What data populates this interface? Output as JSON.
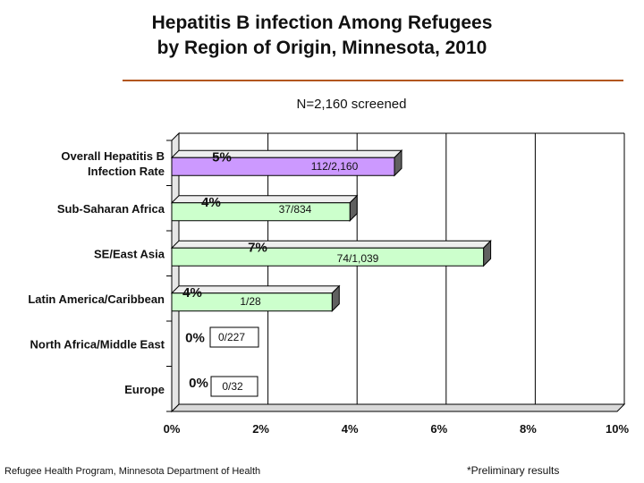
{
  "chart_data": {
    "type": "bar",
    "orientation": "horizontal",
    "title_line1": "Hepatitis B infection Among Refugees",
    "title_line2": "by Region of Origin, Minnesota, 2010",
    "subtitle": "N=2,160 screened",
    "categories": [
      {
        "label_lines": [
          "Overall Hepatitis B",
          "Infection Rate"
        ],
        "value": 5,
        "pct_label": "5%",
        "count_label": "112/2,160",
        "color": "#cc99ff"
      },
      {
        "label_lines": [
          "Sub-Saharan Africa"
        ],
        "value": 4,
        "pct_label": "4%",
        "count_label": "37/834",
        "color": "#ccffcc"
      },
      {
        "label_lines": [
          "SE/East Asia"
        ],
        "value": 7,
        "pct_label": "7%",
        "count_label": "74/1,039",
        "color": "#ccffcc"
      },
      {
        "label_lines": [
          "Latin America/Caribbean"
        ],
        "value": 3.6,
        "pct_label": "4%",
        "count_label": "1/28",
        "color": "#ccffcc"
      },
      {
        "label_lines": [
          "North Africa/Middle East"
        ],
        "value": 0,
        "pct_label": "0%",
        "count_label": "0/227",
        "color": "#ccffcc"
      },
      {
        "label_lines": [
          "Europe"
        ],
        "value": 0,
        "pct_label": "0%",
        "count_label": "0/32",
        "color": "#ccffcc"
      }
    ],
    "x_ticks": [
      "0%",
      "2%",
      "4%",
      "6%",
      "8%",
      "10%"
    ],
    "xlim": [
      0,
      10
    ],
    "grid": true
  },
  "footer": {
    "source": "Refugee Health Program, Minnesota Department of Health",
    "note": "*Preliminary results"
  }
}
